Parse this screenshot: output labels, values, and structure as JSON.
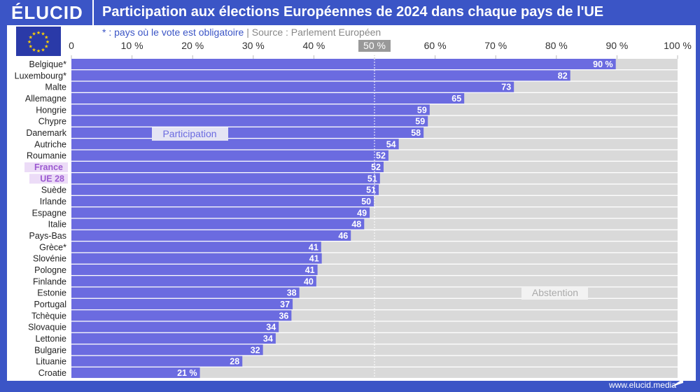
{
  "header": {
    "logo": "ÉLUCID",
    "title": "Participation aux élections Européennes de 2024 dans chaque pays de l'UE"
  },
  "note": {
    "mandatory": "* : pays où le vote est obligatoire",
    "separator": "|",
    "source": "Source : Parlement Européen"
  },
  "footer": {
    "url": "www.elucid.media"
  },
  "colors": {
    "participation": "#6b6be0",
    "abstention": "#d9d9d9",
    "highlight_bg": "#ecdcf7",
    "highlight_text": "#9b59d0",
    "header": "#3b55c6"
  },
  "chart_data": {
    "type": "bar",
    "orientation": "horizontal",
    "stacked": true,
    "xlim": [
      0,
      100
    ],
    "x_ticks": [
      "0",
      "10 %",
      "20 %",
      "30 %",
      "40 %",
      "50 %",
      "60 %",
      "70 %",
      "80 %",
      "90 %",
      "100 %"
    ],
    "reference_line": {
      "value": 50,
      "label": "50 %"
    },
    "series_labels": {
      "participation": "Participation",
      "abstention": "Abstention"
    },
    "categories": [
      "Belgique*",
      "Luxembourg*",
      "Malte",
      "Allemagne",
      "Hongrie",
      "Chypre",
      "Danemark",
      "Autriche",
      "Roumanie",
      "France",
      "UE 28",
      "Suède",
      "Irlande",
      "Espagne",
      "Italie",
      "Pays-Bas",
      "Grèce*",
      "Slovénie",
      "Pologne",
      "Finlande",
      "Estonie",
      "Portugal",
      "Tchèquie",
      "Slovaquie",
      "Lettonie",
      "Bulgarie",
      "Lituanie",
      "Croatie"
    ],
    "highlighted": [
      "France",
      "UE 28"
    ],
    "values": [
      89.8,
      82.3,
      73.0,
      64.8,
      59.1,
      58.8,
      58.1,
      54.0,
      52.3,
      51.5,
      50.9,
      50.7,
      49.9,
      49.2,
      48.3,
      46.1,
      41.2,
      41.3,
      40.6,
      40.4,
      37.6,
      36.5,
      36.3,
      34.2,
      33.7,
      31.6,
      28.2,
      21.2
    ],
    "data_labels": [
      "90 %",
      "82",
      "73",
      "65",
      "59",
      "59",
      "58",
      "54",
      "52",
      "52",
      "51",
      "51",
      "50",
      "49",
      "48",
      "46",
      "41",
      "41",
      "41",
      "40",
      "38",
      "37",
      "36",
      "34",
      "34",
      "32",
      "28",
      "21 %"
    ]
  }
}
